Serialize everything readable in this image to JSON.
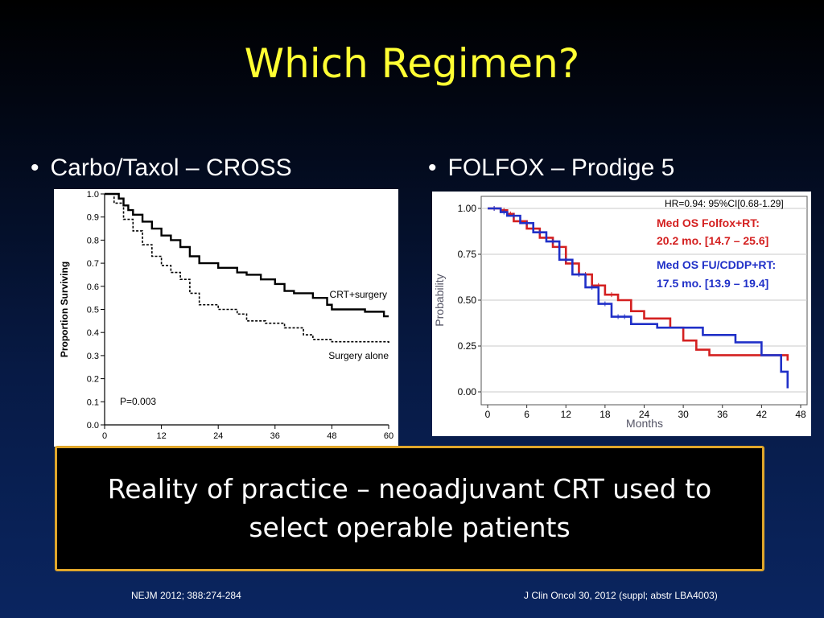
{
  "slide": {
    "title": "Which Regimen?",
    "left_bullet": "Carbo/Taxol – CROSS",
    "right_bullet": "FOLFOX – Prodige 5",
    "callout": "Reality of practice – neoadjuvant CRT used to select operable patients",
    "ref_left": "NEJM 2012; 388:274-284",
    "ref_right": "J Clin Oncol 30, 2012 (suppl; abstr LBA4003)",
    "bullet_symbol": "•",
    "colors": {
      "title": "#ffff33",
      "callout_border": "#e0a62a",
      "background": "#071a45"
    }
  },
  "chart_data": [
    {
      "type": "line",
      "step": true,
      "ylabel": "Proportion Surviving",
      "xlim": [
        0,
        60
      ],
      "ylim": [
        0,
        1.0
      ],
      "xticks": [
        0,
        12,
        24,
        36,
        48,
        60
      ],
      "yticks": [
        "0.0",
        "0.1",
        "0.2",
        "0.3",
        "0.4",
        "0.5",
        "0.6",
        "0.7",
        "0.8",
        "0.9",
        "1.0"
      ],
      "annotations": [
        "P=0.003",
        "CRT+surgery",
        "Surgery alone"
      ],
      "series": [
        {
          "name": "CRT+surgery",
          "style": "solid",
          "color": "#000000",
          "points": [
            [
              0,
              1.0
            ],
            [
              3,
              0.98
            ],
            [
              4,
              0.95
            ],
            [
              5,
              0.93
            ],
            [
              6,
              0.91
            ],
            [
              8,
              0.88
            ],
            [
              10,
              0.85
            ],
            [
              12,
              0.82
            ],
            [
              14,
              0.8
            ],
            [
              16,
              0.77
            ],
            [
              18,
              0.73
            ],
            [
              20,
              0.7
            ],
            [
              24,
              0.68
            ],
            [
              28,
              0.66
            ],
            [
              30,
              0.65
            ],
            [
              33,
              0.63
            ],
            [
              36,
              0.61
            ],
            [
              38,
              0.58
            ],
            [
              40,
              0.57
            ],
            [
              44,
              0.55
            ],
            [
              47,
              0.52
            ],
            [
              48,
              0.5
            ],
            [
              55,
              0.49
            ],
            [
              59,
              0.47
            ],
            [
              60,
              0.47
            ]
          ]
        },
        {
          "name": "Surgery alone",
          "style": "dashed",
          "color": "#000000",
          "points": [
            [
              0,
              1.0
            ],
            [
              2,
              0.96
            ],
            [
              4,
              0.89
            ],
            [
              6,
              0.84
            ],
            [
              8,
              0.78
            ],
            [
              10,
              0.73
            ],
            [
              12,
              0.69
            ],
            [
              14,
              0.66
            ],
            [
              16,
              0.63
            ],
            [
              18,
              0.57
            ],
            [
              20,
              0.52
            ],
            [
              24,
              0.5
            ],
            [
              28,
              0.48
            ],
            [
              30,
              0.45
            ],
            [
              34,
              0.44
            ],
            [
              38,
              0.42
            ],
            [
              42,
              0.39
            ],
            [
              44,
              0.37
            ],
            [
              48,
              0.36
            ],
            [
              55,
              0.36
            ],
            [
              60,
              0.35
            ]
          ]
        }
      ]
    },
    {
      "type": "line",
      "step": true,
      "ylabel": "Probability",
      "xlabel": "Months",
      "xlim": [
        0,
        48
      ],
      "ylim": [
        0,
        1.0
      ],
      "xticks": [
        "0",
        "6",
        "12",
        "18",
        "24",
        "30",
        "36",
        "42",
        "48"
      ],
      "yticks": [
        "0.00",
        "0.25",
        "0.50",
        "0.75",
        "1.00"
      ],
      "annotations": {
        "hr": "HR=0.94: 95%CI[0.68-1.29]",
        "red_line1": "Med OS Folfox+RT:",
        "red_line2": "20.2 mo. [14.7 – 25.6]",
        "blue_line1": "Med OS FU/CDDP+RT:",
        "blue_line2": "17.5 mo. [13.9 – 19.4]"
      },
      "series": [
        {
          "name": "Folfox+RT",
          "color": "#d42020",
          "points": [
            [
              0,
              1.0
            ],
            [
              2,
              0.99
            ],
            [
              3,
              0.97
            ],
            [
              4,
              0.93
            ],
            [
              6,
              0.89
            ],
            [
              8,
              0.84
            ],
            [
              10,
              0.79
            ],
            [
              12,
              0.7
            ],
            [
              14,
              0.64
            ],
            [
              16,
              0.58
            ],
            [
              18,
              0.53
            ],
            [
              20,
              0.5
            ],
            [
              22,
              0.44
            ],
            [
              24,
              0.4
            ],
            [
              28,
              0.35
            ],
            [
              30,
              0.28
            ],
            [
              32,
              0.23
            ],
            [
              34,
              0.2
            ],
            [
              40,
              0.2
            ],
            [
              46,
              0.17
            ]
          ]
        },
        {
          "name": "FU/CDDP+RT",
          "color": "#2030c8",
          "points": [
            [
              0,
              1.0
            ],
            [
              2,
              0.98
            ],
            [
              3,
              0.96
            ],
            [
              5,
              0.92
            ],
            [
              7,
              0.87
            ],
            [
              9,
              0.82
            ],
            [
              11,
              0.72
            ],
            [
              13,
              0.64
            ],
            [
              15,
              0.57
            ],
            [
              17,
              0.48
            ],
            [
              19,
              0.41
            ],
            [
              22,
              0.37
            ],
            [
              26,
              0.35
            ],
            [
              33,
              0.31
            ],
            [
              38,
              0.27
            ],
            [
              42,
              0.2
            ],
            [
              45,
              0.11
            ],
            [
              46,
              0.02
            ]
          ]
        }
      ]
    }
  ]
}
